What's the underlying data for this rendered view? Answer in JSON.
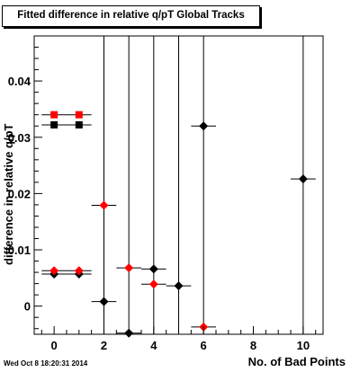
{
  "title": "Fitted difference in relative q/pT  Global Tracks",
  "timestamp": "Wed Oct  8 18:20:31 2014",
  "chart_data": {
    "type": "scatter",
    "title": "Fitted difference in relative q/pT  Global Tracks",
    "xlabel": "No. of Bad Points",
    "ylabel": "difference in relative q/pT",
    "xlim": [
      -0.8,
      10.8
    ],
    "ylim": [
      -0.005,
      0.048
    ],
    "x_ticks": [
      0,
      2,
      4,
      6,
      8,
      10
    ],
    "x_tick_labels": [
      "0",
      "2",
      "4",
      "6",
      "8",
      "10"
    ],
    "y_ticks": [
      0,
      0.01,
      0.02,
      0.03,
      0.04
    ],
    "y_tick_labels": [
      "0",
      "0.01",
      "0.02",
      "0.03",
      "0.04"
    ],
    "grid": false,
    "series": [
      {
        "color": "#000000",
        "marker": "square",
        "points": [
          {
            "x": 0,
            "y": 0.0322
          },
          {
            "x": 1,
            "y": 0.0322
          }
        ]
      },
      {
        "color": "#ff0000",
        "marker": "square",
        "points": [
          {
            "x": 0,
            "y": 0.034
          },
          {
            "x": 1,
            "y": 0.034
          }
        ]
      },
      {
        "color": "#000000",
        "marker": "diamond",
        "points": [
          {
            "x": 0,
            "y": 0.0057
          },
          {
            "x": 1,
            "y": 0.0057
          },
          {
            "x": 2,
            "y": 0.0008,
            "err": 0.1
          },
          {
            "x": 3,
            "y": -0.0048,
            "err": 0.1
          },
          {
            "x": 4,
            "y": 0.0066,
            "err": 0.1
          },
          {
            "x": 5,
            "y": 0.0036,
            "err": 0.1
          },
          {
            "x": 6,
            "y": 0.032,
            "err": 0.1
          },
          {
            "x": 10,
            "y": 0.0226,
            "err": 0.1
          }
        ]
      },
      {
        "color": "#ff0000",
        "marker": "diamond",
        "points": [
          {
            "x": 0,
            "y": 0.0063
          },
          {
            "x": 1,
            "y": 0.0063
          },
          {
            "x": 2,
            "y": 0.0179,
            "err": 0.1
          },
          {
            "x": 3,
            "y": 0.0068
          },
          {
            "x": 4,
            "y": 0.0039
          },
          {
            "x": 6,
            "y": -0.0037
          }
        ]
      }
    ]
  }
}
